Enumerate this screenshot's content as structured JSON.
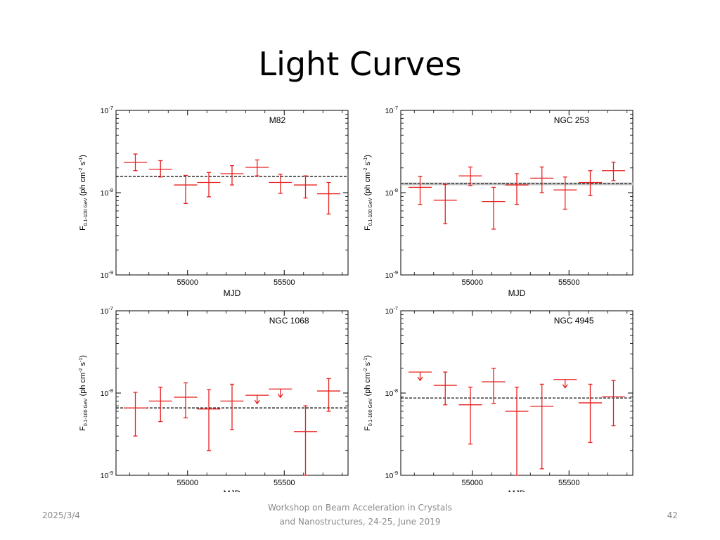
{
  "slide": {
    "title": "Light Curves",
    "footer": {
      "date": "2025/3/4",
      "event_line1": "Workshop on Beam Acceleration in Crystals",
      "event_line2": "and Nanostructures, 24-25, June 2019",
      "page": "42"
    }
  },
  "colors": {
    "data": "#e8201f",
    "mean": "#000000",
    "frame": "#000000",
    "band": "#c8c8c8"
  },
  "chart_data": [
    {
      "type": "scatter",
      "title": "M82",
      "xlabel": "MJD",
      "ylabel": "F0.1-100 GeV (ph cm-2 s-1)",
      "y_scale": "log",
      "xlim": [
        54630,
        55830
      ],
      "ylim": [
        1e-09,
        1e-07
      ],
      "x_ticks": [
        55000,
        55500
      ],
      "y_tick_labels": [
        "10-9",
        "10-8",
        "10-7"
      ],
      "mean_flux": 1.58e-08,
      "points": [
        {
          "x": 54730,
          "xerr": 60,
          "y": 2.33e-08,
          "ylo": 1.85e-08,
          "yhi": 2.95e-08
        },
        {
          "x": 54860,
          "xerr": 60,
          "y": 1.93e-08,
          "ylo": 1.55e-08,
          "yhi": 2.45e-08
        },
        {
          "x": 54990,
          "xerr": 60,
          "y": 1.24e-08,
          "ylo": 7.4e-09,
          "yhi": 1.62e-08
        },
        {
          "x": 55110,
          "xerr": 60,
          "y": 1.33e-08,
          "ylo": 8.9e-09,
          "yhi": 1.76e-08
        },
        {
          "x": 55230,
          "xerr": 60,
          "y": 1.7e-08,
          "ylo": 1.24e-08,
          "yhi": 2.13e-08
        },
        {
          "x": 55360,
          "xerr": 60,
          "y": 2.03e-08,
          "ylo": 1.6e-08,
          "yhi": 2.5e-08
        },
        {
          "x": 55480,
          "xerr": 60,
          "y": 1.33e-08,
          "ylo": 9.8e-09,
          "yhi": 1.67e-08
        },
        {
          "x": 55610,
          "xerr": 60,
          "y": 1.24e-08,
          "ylo": 8.6e-09,
          "yhi": 1.6e-08
        },
        {
          "x": 55730,
          "xerr": 60,
          "y": 9.7e-09,
          "ylo": 5.5e-09,
          "yhi": 1.33e-08
        }
      ],
      "upper_limits": []
    },
    {
      "type": "scatter",
      "title": "NGC 253",
      "xlabel": "MJD",
      "ylabel": "F0.1-100 GeV (ph cm-2 s-1)",
      "y_scale": "log",
      "xlim": [
        54630,
        55830
      ],
      "ylim": [
        1e-09,
        1e-07
      ],
      "x_ticks": [
        55000,
        55500
      ],
      "y_tick_labels": [
        "10-9",
        "10-8",
        "10-7"
      ],
      "mean_flux": 1.28e-08,
      "points": [
        {
          "x": 54730,
          "xerr": 60,
          "y": 1.16e-08,
          "ylo": 7.2e-09,
          "yhi": 1.58e-08
        },
        {
          "x": 54860,
          "xerr": 60,
          "y": 8.1e-09,
          "ylo": 4.2e-09,
          "yhi": 1.26e-08
        },
        {
          "x": 54990,
          "xerr": 60,
          "y": 1.6e-08,
          "ylo": 1.22e-08,
          "yhi": 2.05e-08
        },
        {
          "x": 55110,
          "xerr": 60,
          "y": 7.8e-09,
          "ylo": 3.6e-09,
          "yhi": 1.16e-08
        },
        {
          "x": 55230,
          "xerr": 60,
          "y": 1.24e-08,
          "ylo": 7.2e-09,
          "yhi": 1.7e-08
        },
        {
          "x": 55360,
          "xerr": 60,
          "y": 1.5e-08,
          "ylo": 1e-08,
          "yhi": 2.05e-08
        },
        {
          "x": 55480,
          "xerr": 60,
          "y": 1.08e-08,
          "ylo": 6.3e-09,
          "yhi": 1.55e-08
        },
        {
          "x": 55610,
          "xerr": 60,
          "y": 1.33e-08,
          "ylo": 9.2e-09,
          "yhi": 1.85e-08
        },
        {
          "x": 55730,
          "xerr": 60,
          "y": 1.85e-08,
          "ylo": 1.4e-08,
          "yhi": 2.35e-08
        }
      ],
      "upper_limits": []
    },
    {
      "type": "scatter",
      "title": "NGC 1068",
      "xlabel": "MJD",
      "ylabel": "F0.1-100 GeV (ph cm-2 s-1)",
      "y_scale": "log",
      "xlim": [
        54630,
        55830
      ],
      "ylim": [
        1e-09,
        1e-07
      ],
      "x_ticks": [
        55000,
        55500
      ],
      "y_tick_labels": [
        "10-9",
        "10-8",
        "10-7"
      ],
      "mean_flux": 6.6e-09,
      "points": [
        {
          "x": 54730,
          "xerr": 60,
          "y": 6.6e-09,
          "ylo": 3e-09,
          "yhi": 1.02e-08
        },
        {
          "x": 54860,
          "xerr": 60,
          "y": 8e-09,
          "ylo": 4.5e-09,
          "yhi": 1.18e-08
        },
        {
          "x": 54990,
          "xerr": 60,
          "y": 8.9e-09,
          "ylo": 5e-09,
          "yhi": 1.33e-08
        },
        {
          "x": 55110,
          "xerr": 60,
          "y": 6.4e-09,
          "ylo": 2e-09,
          "yhi": 1.1e-08
        },
        {
          "x": 55230,
          "xerr": 60,
          "y": 8e-09,
          "ylo": 3.6e-09,
          "yhi": 1.28e-08
        },
        {
          "x": 55610,
          "xerr": 60,
          "y": 3.4e-09,
          "ylo": 1e-09,
          "yhi": 7e-09
        },
        {
          "x": 55730,
          "xerr": 60,
          "y": 1.06e-08,
          "ylo": 6e-09,
          "yhi": 1.5e-08
        }
      ],
      "upper_limits": [
        {
          "x": 55360,
          "xerr": 60,
          "y": 9.4e-09
        },
        {
          "x": 55480,
          "xerr": 60,
          "y": 1.12e-08
        }
      ]
    },
    {
      "type": "scatter",
      "title": "NGC 4945",
      "xlabel": "MJD",
      "ylabel": "F0.1-100 GeV (ph cm-2 s-1)",
      "y_scale": "log",
      "xlim": [
        54630,
        55830
      ],
      "ylim": [
        1e-09,
        1e-07
      ],
      "x_ticks": [
        55000,
        55500
      ],
      "y_tick_labels": [
        "10-9",
        "10-8",
        "10-7"
      ],
      "mean_flux": 8.7e-09,
      "points": [
        {
          "x": 54860,
          "xerr": 60,
          "y": 1.24e-08,
          "ylo": 7.2e-09,
          "yhi": 1.8e-08
        },
        {
          "x": 54990,
          "xerr": 60,
          "y": 7.2e-09,
          "ylo": 2.4e-09,
          "yhi": 1.18e-08
        },
        {
          "x": 55110,
          "xerr": 60,
          "y": 1.37e-08,
          "ylo": 7.5e-09,
          "yhi": 2e-08
        },
        {
          "x": 55230,
          "xerr": 60,
          "y": 6e-09,
          "ylo": 1e-09,
          "yhi": 1.18e-08
        },
        {
          "x": 55360,
          "xerr": 60,
          "y": 6.9e-09,
          "ylo": 1.2e-09,
          "yhi": 1.28e-08
        },
        {
          "x": 55610,
          "xerr": 60,
          "y": 7.6e-09,
          "ylo": 2.5e-09,
          "yhi": 1.28e-08
        },
        {
          "x": 55730,
          "xerr": 60,
          "y": 9e-09,
          "ylo": 4e-09,
          "yhi": 1.42e-08
        }
      ],
      "upper_limits": [
        {
          "x": 54730,
          "xerr": 60,
          "y": 1.8e-08
        },
        {
          "x": 55480,
          "xerr": 60,
          "y": 1.46e-08
        }
      ]
    }
  ]
}
